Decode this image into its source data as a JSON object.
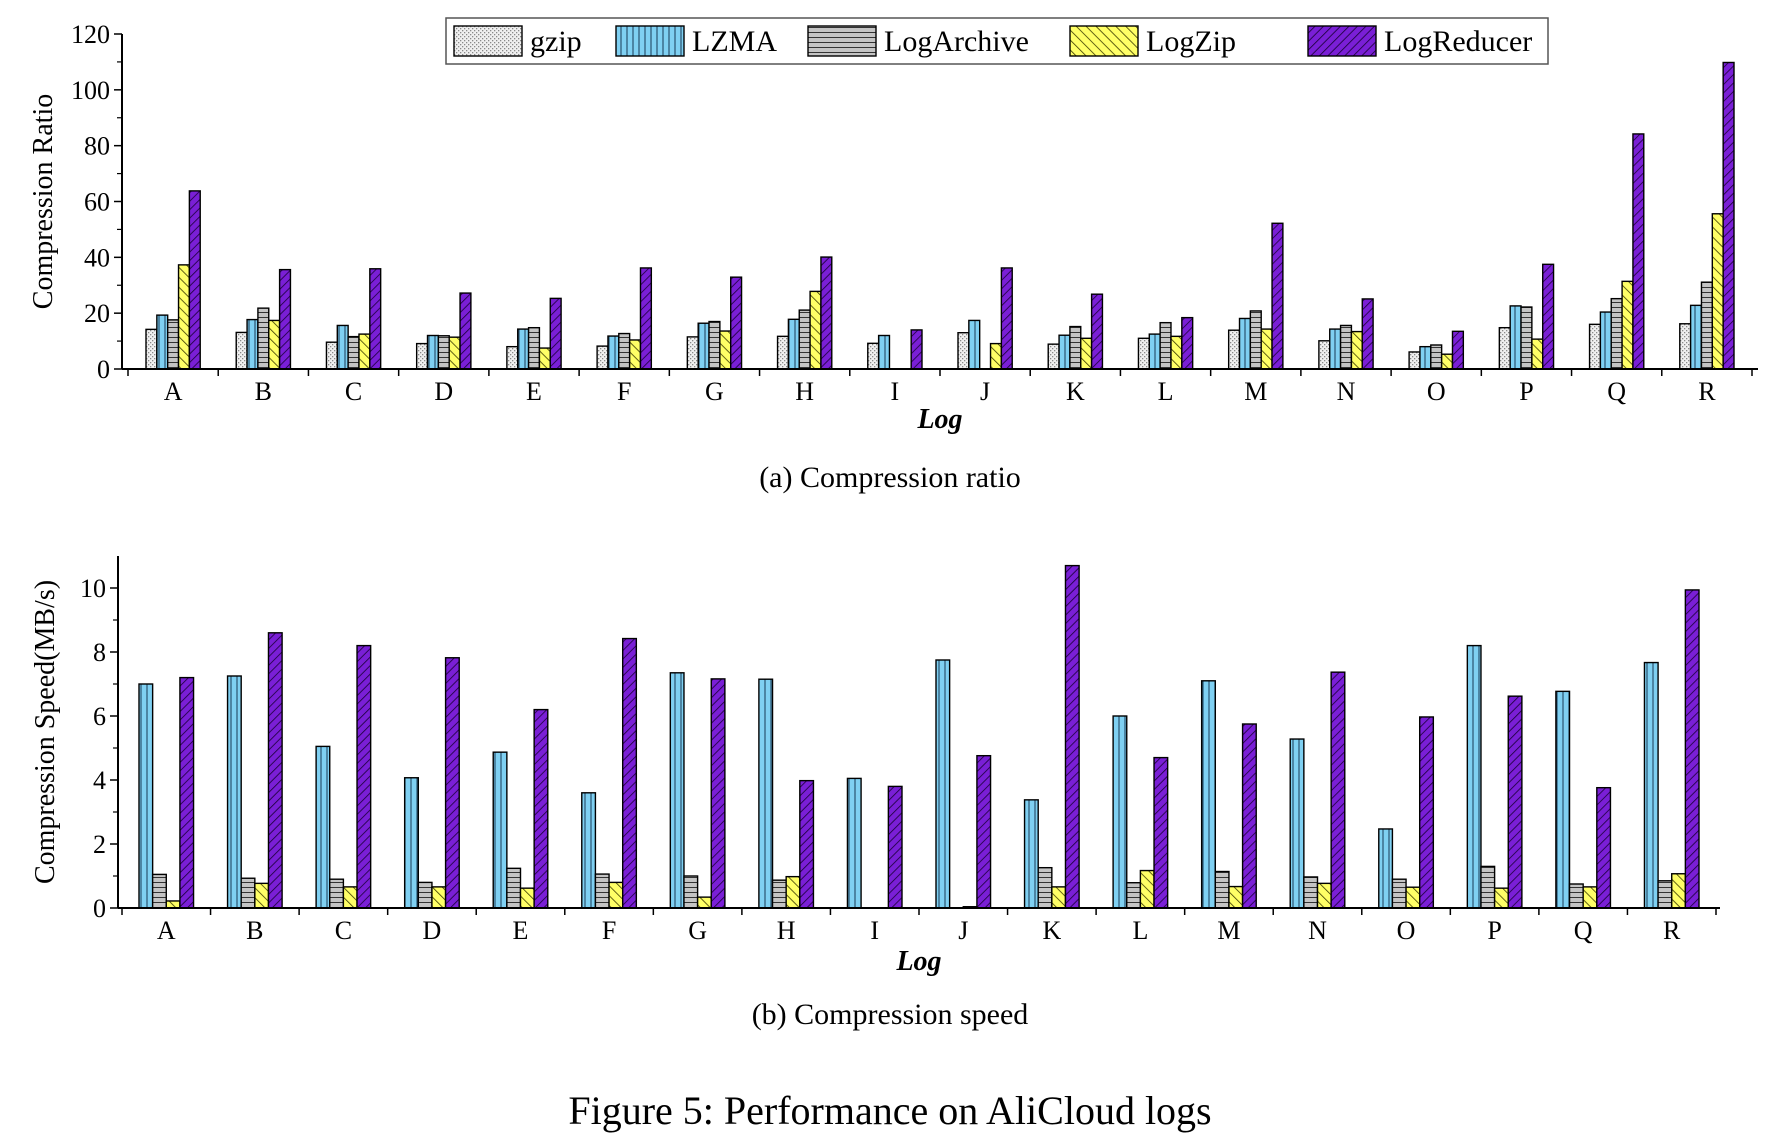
{
  "legend": {
    "labels": [
      "gzip",
      "LZMA",
      "LogArchive",
      "LogZip",
      "LogReducer"
    ]
  },
  "series_style": {
    "gzip": {
      "fill": "#ececec",
      "pattern": "dots"
    },
    "LZMA": {
      "fill": "#7fd0f2",
      "pattern": "vertical"
    },
    "LogArchive": {
      "fill": "#bdbdbd",
      "pattern": "horizontal"
    },
    "LogZip": {
      "fill": "#ffff66",
      "pattern": "diag-up"
    },
    "LogReducer": {
      "fill": "#7a1fd6",
      "pattern": "diag-down"
    }
  },
  "captions": {
    "a": "(a)  Compression ratio",
    "b": "(b)  Compression speed",
    "figure": "Figure 5: Performance on AliCloud logs"
  },
  "chart_data": [
    {
      "type": "bar",
      "xlabel": "Log",
      "ylabel": "Compression Ratio",
      "ylim": [
        0,
        120
      ],
      "yticks": [
        "0",
        "20",
        "40",
        "60",
        "80",
        "100",
        "120"
      ],
      "legend_position": "top-right",
      "grid": false,
      "categories": [
        "A",
        "B",
        "C",
        "D",
        "E",
        "F",
        "G",
        "H",
        "I",
        "J",
        "K",
        "L",
        "M",
        "N",
        "O",
        "P",
        "Q",
        "R"
      ],
      "series": [
        {
          "name": "gzip",
          "values": [
            14.2,
            13.1,
            9.6,
            9.1,
            8.0,
            8.2,
            11.5,
            11.7,
            9.2,
            13.0,
            8.9,
            11.0,
            13.9,
            10.1,
            6.1,
            14.8,
            16.0,
            16.2
          ]
        },
        {
          "name": "LZMA",
          "values": [
            19.3,
            17.7,
            15.6,
            12.0,
            14.3,
            11.8,
            16.4,
            17.8,
            12.0,
            17.4,
            12.1,
            12.5,
            18.1,
            14.3,
            8.0,
            22.6,
            20.4,
            22.8
          ]
        },
        {
          "name": "LogArchive",
          "values": [
            17.6,
            21.8,
            11.6,
            11.9,
            14.8,
            12.7,
            17.0,
            21.1,
            0,
            0,
            15.2,
            16.6,
            20.8,
            15.6,
            8.6,
            22.2,
            25.2,
            31.1
          ]
        },
        {
          "name": "LogZip",
          "values": [
            37.3,
            17.4,
            12.5,
            11.4,
            7.5,
            10.4,
            13.6,
            27.8,
            0,
            9.1,
            11.0,
            11.7,
            14.3,
            13.4,
            5.3,
            10.7,
            31.4,
            55.6
          ]
        },
        {
          "name": "LogReducer",
          "values": [
            63.8,
            35.6,
            35.9,
            27.2,
            25.3,
            36.2,
            32.9,
            40.1,
            14.0,
            36.2,
            26.8,
            18.4,
            52.2,
            25.1,
            13.5,
            37.5,
            84.2,
            109.8
          ]
        }
      ]
    },
    {
      "type": "bar",
      "xlabel": "Log",
      "ylabel": "Compression Speed(MB/s)",
      "ylim": [
        0,
        11
      ],
      "yticks": [
        "0",
        "2",
        "4",
        "6",
        "8",
        "10"
      ],
      "grid": false,
      "categories": [
        "A",
        "B",
        "C",
        "D",
        "E",
        "F",
        "G",
        "H",
        "I",
        "J",
        "K",
        "L",
        "M",
        "N",
        "O",
        "P",
        "Q",
        "R"
      ],
      "series": [
        {
          "name": "LZMA",
          "values": [
            7.0,
            7.25,
            5.05,
            4.07,
            4.87,
            3.6,
            7.35,
            7.15,
            4.05,
            7.75,
            3.38,
            6.0,
            7.1,
            5.28,
            2.47,
            8.2,
            6.77,
            7.67
          ]
        },
        {
          "name": "LogArchive",
          "values": [
            1.05,
            0.93,
            0.9,
            0.8,
            1.24,
            1.06,
            1.0,
            0.87,
            0,
            0,
            1.26,
            0.79,
            1.14,
            0.97,
            0.9,
            1.3,
            0.75,
            0.85
          ]
        },
        {
          "name": "LogZip",
          "values": [
            0.22,
            0.77,
            0.66,
            0.66,
            0.62,
            0.8,
            0.34,
            0.98,
            0,
            0.04,
            0.66,
            1.17,
            0.67,
            0.77,
            0.65,
            0.62,
            0.66,
            1.07
          ]
        },
        {
          "name": "LogReducer",
          "values": [
            7.2,
            8.6,
            8.2,
            7.82,
            6.2,
            8.42,
            7.16,
            3.98,
            3.8,
            4.76,
            10.7,
            4.7,
            5.75,
            7.37,
            5.97,
            6.62,
            3.76,
            9.94
          ]
        }
      ]
    }
  ]
}
